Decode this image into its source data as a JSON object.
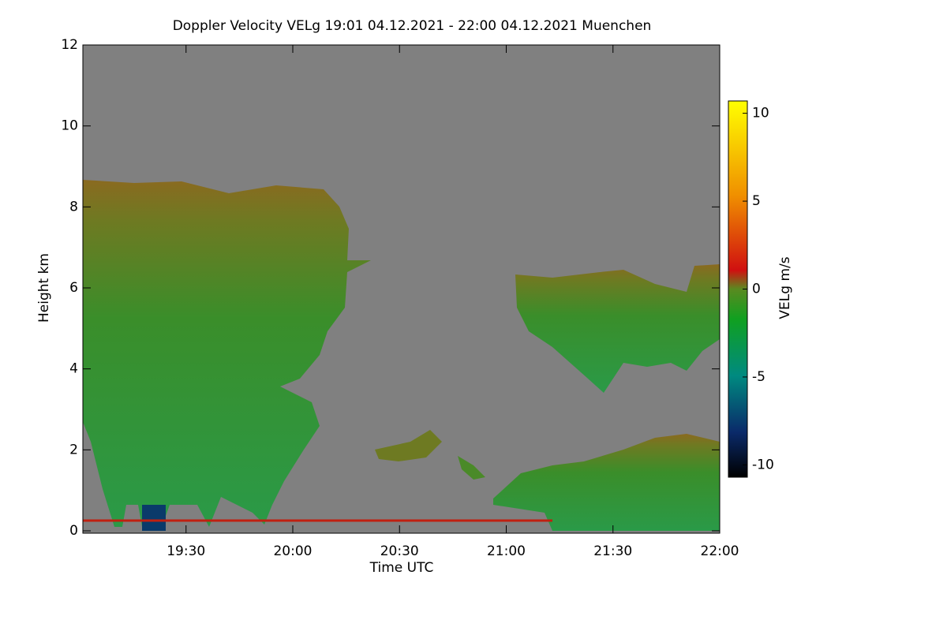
{
  "chart_data": {
    "type": "heatmap",
    "title": "Doppler Velocity VELg   19:01 04.12.2021 - 22:00 04.12.2021 Muenchen",
    "x_label": "Time UTC",
    "y_label": "Height km",
    "colorbar_label": "VELg m/s",
    "xlim": [
      1141,
      1320
    ],
    "xticks": [
      {
        "value": 1170,
        "label": "19:30"
      },
      {
        "value": 1200,
        "label": "20:00"
      },
      {
        "value": 1230,
        "label": "20:30"
      },
      {
        "value": 1260,
        "label": "21:00"
      },
      {
        "value": 1290,
        "label": "21:30"
      },
      {
        "value": 1320,
        "label": "22:00"
      }
    ],
    "ylim": [
      0,
      12
    ],
    "yticks": [
      0,
      2,
      4,
      6,
      8,
      10,
      12
    ],
    "clim": [
      -10.7,
      10.7
    ],
    "cticks": [
      -10,
      -5,
      0,
      5,
      10
    ]
  }
}
